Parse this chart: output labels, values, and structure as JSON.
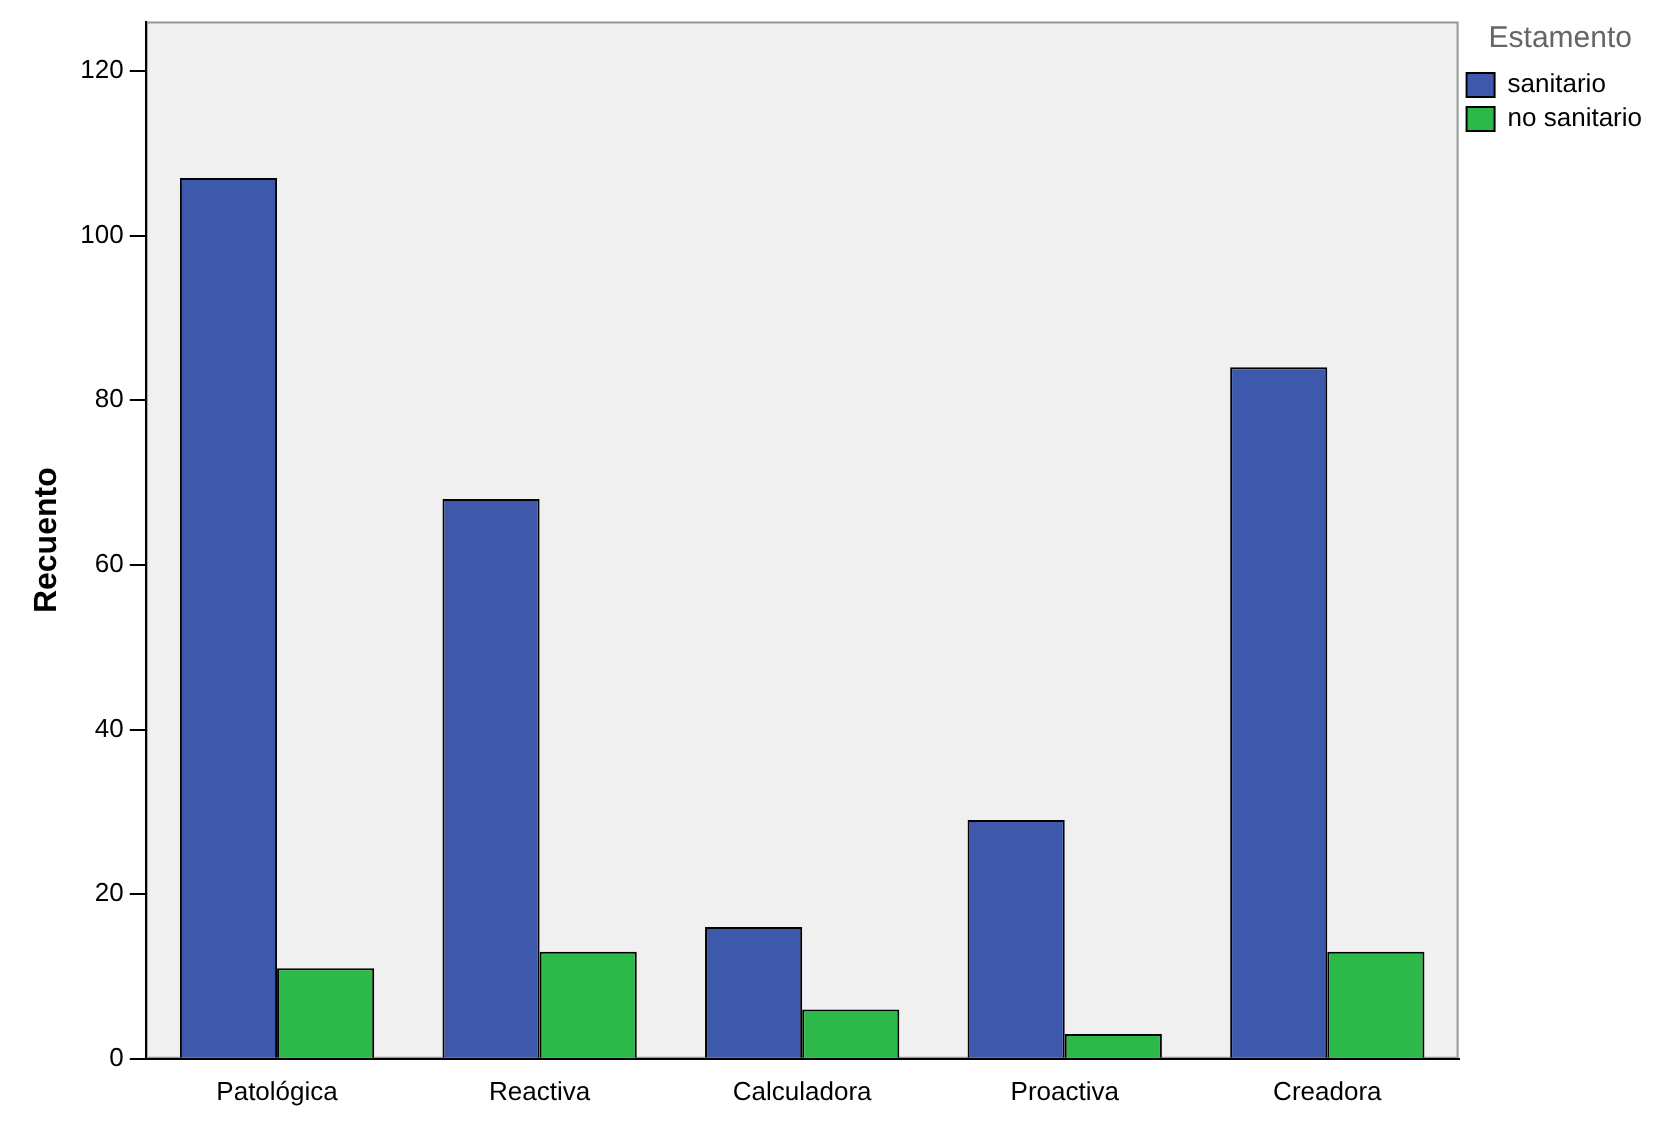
{
  "chart_data": {
    "type": "bar",
    "ylabel": "Recuento",
    "legend_title": "Estamento",
    "categories": [
      "Patológica",
      "Reactiva",
      "Calculadora",
      "Proactiva",
      "Creadora"
    ],
    "series": [
      {
        "name": "sanitario",
        "color": "#3e58ac",
        "values": [
          107,
          68,
          16,
          29,
          84
        ]
      },
      {
        "name": "no sanitario",
        "color": "#2db84a",
        "values": [
          11,
          13,
          6,
          3,
          13
        ]
      }
    ],
    "ylim": [
      0,
      126
    ],
    "yticks": [
      0,
      20,
      40,
      60,
      80,
      100,
      120
    ],
    "grid": false,
    "legend": "top right"
  }
}
